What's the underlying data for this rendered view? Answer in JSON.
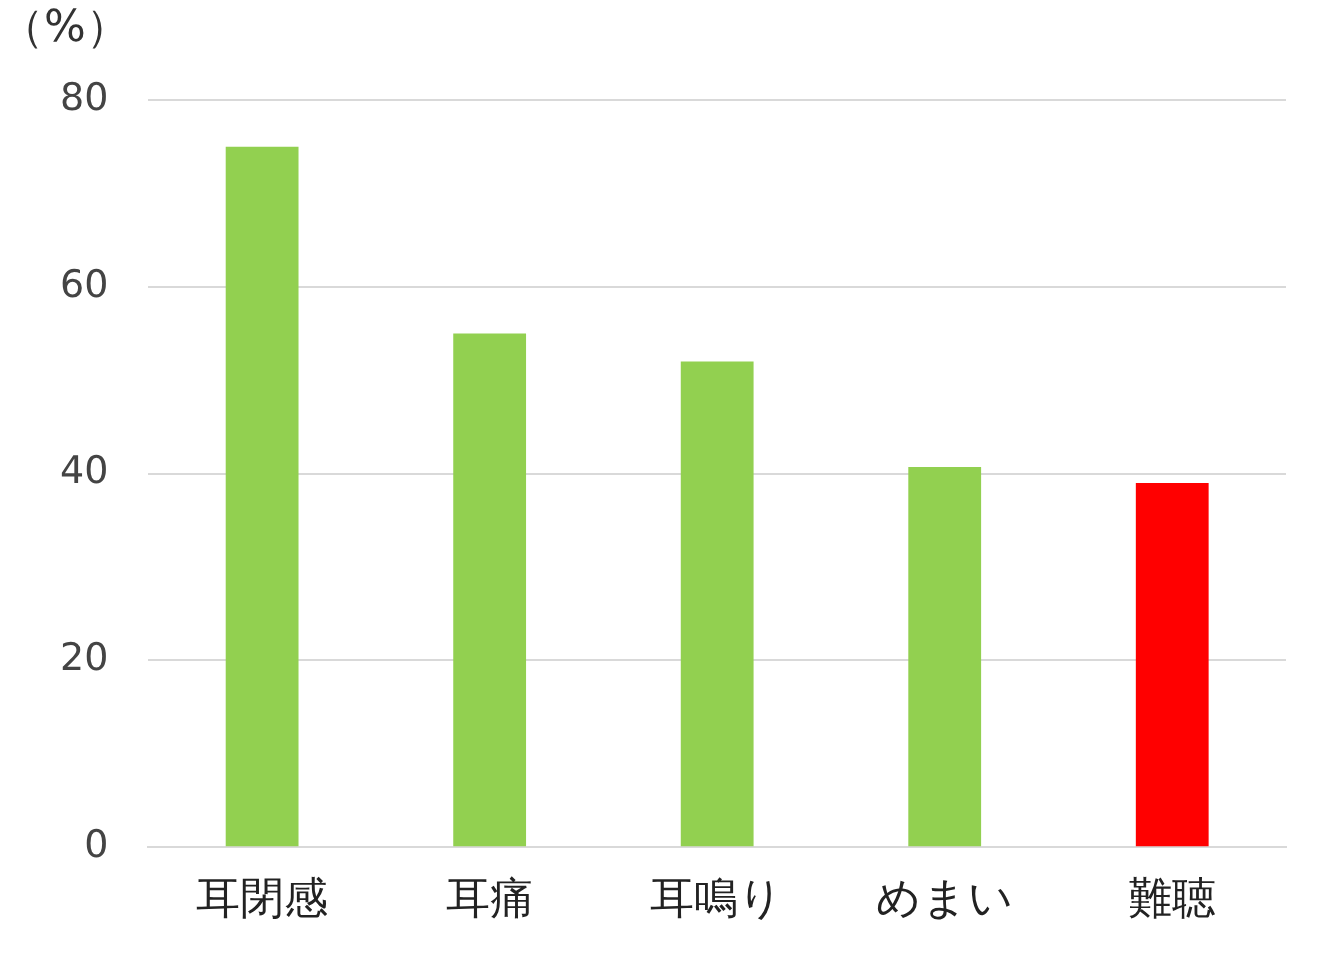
{
  "chart_data": {
    "type": "bar",
    "ylabel": "（%）",
    "categories": [
      "耳閉感",
      "耳痛",
      "耳鳴り",
      "めまい",
      "難聴"
    ],
    "values": [
      75,
      55,
      52,
      40.7,
      39
    ],
    "colors": [
      "#92d050",
      "#92d050",
      "#92d050",
      "#92d050",
      "#ff0000"
    ],
    "ylim": [
      0,
      80
    ],
    "yticks": [
      0,
      20,
      40,
      60,
      80
    ],
    "grid": "y",
    "legend": false
  }
}
